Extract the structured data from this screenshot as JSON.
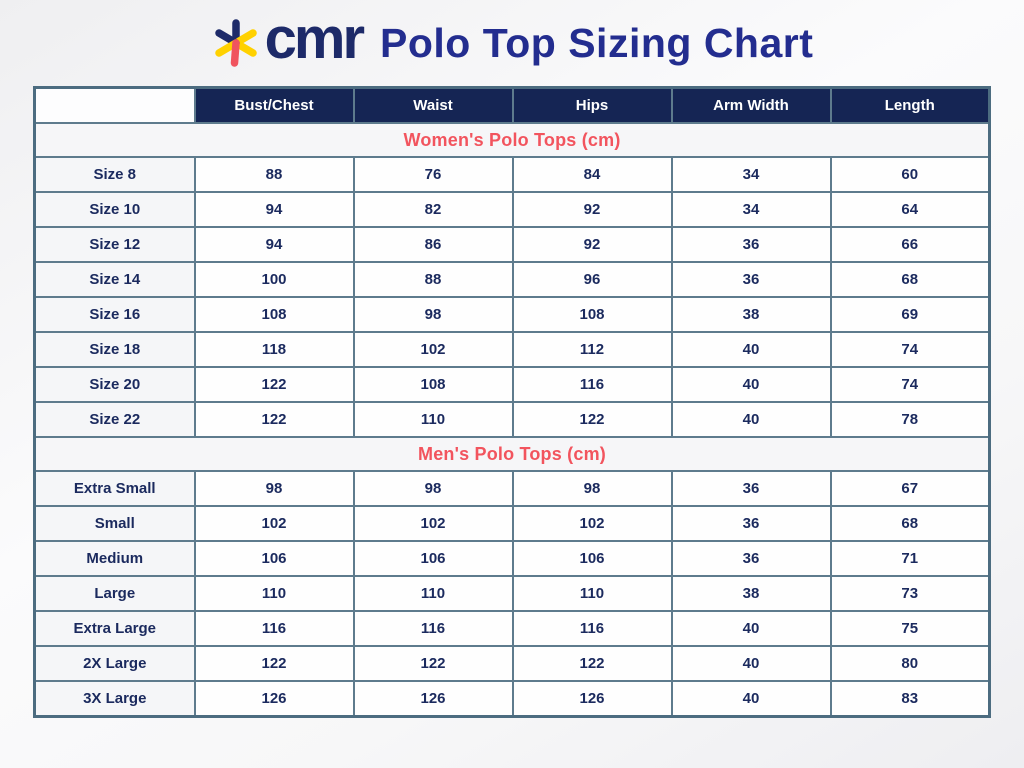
{
  "header": {
    "logo_text": "cmr",
    "title": "Polo Top Sizing Chart"
  },
  "colors": {
    "logo_navy": "#1d2a69",
    "title_blue": "#232d8f",
    "header_cell_navy": "#152554",
    "section_coral": "#f2545e",
    "grid_slate": "#5e7b8d",
    "text_navy": "#1b2a5e",
    "logo_yellow": "#ffd100",
    "logo_red": "#f0545f"
  },
  "table": {
    "column_headers": [
      "Bust/Chest",
      "Waist",
      "Hips",
      "Arm Width",
      "Length"
    ],
    "sections": [
      {
        "title": "Women's Polo Tops (cm)",
        "rows": [
          {
            "label": "Size 8",
            "values": [
              "88",
              "76",
              "84",
              "34",
              "60"
            ]
          },
          {
            "label": "Size 10",
            "values": [
              "94",
              "82",
              "92",
              "34",
              "64"
            ]
          },
          {
            "label": "Size 12",
            "values": [
              "94",
              "86",
              "92",
              "36",
              "66"
            ]
          },
          {
            "label": "Size 14",
            "values": [
              "100",
              "88",
              "96",
              "36",
              "68"
            ]
          },
          {
            "label": "Size 16",
            "values": [
              "108",
              "98",
              "108",
              "38",
              "69"
            ]
          },
          {
            "label": "Size 18",
            "values": [
              "118",
              "102",
              "112",
              "40",
              "74"
            ]
          },
          {
            "label": "Size 20",
            "values": [
              "122",
              "108",
              "116",
              "40",
              "74"
            ]
          },
          {
            "label": "Size 22",
            "values": [
              "122",
              "110",
              "122",
              "40",
              "78"
            ]
          }
        ]
      },
      {
        "title": "Men's Polo Tops (cm)",
        "rows": [
          {
            "label": "Extra Small",
            "values": [
              "98",
              "98",
              "98",
              "36",
              "67"
            ]
          },
          {
            "label": "Small",
            "values": [
              "102",
              "102",
              "102",
              "36",
              "68"
            ]
          },
          {
            "label": "Medium",
            "values": [
              "106",
              "106",
              "106",
              "36",
              "71"
            ]
          },
          {
            "label": "Large",
            "values": [
              "110",
              "110",
              "110",
              "38",
              "73"
            ]
          },
          {
            "label": "Extra Large",
            "values": [
              "116",
              "116",
              "116",
              "40",
              "75"
            ]
          },
          {
            "label": "2X Large",
            "values": [
              "122",
              "122",
              "122",
              "40",
              "80"
            ]
          },
          {
            "label": "3X Large",
            "values": [
              "126",
              "126",
              "126",
              "40",
              "83"
            ]
          }
        ]
      }
    ]
  }
}
